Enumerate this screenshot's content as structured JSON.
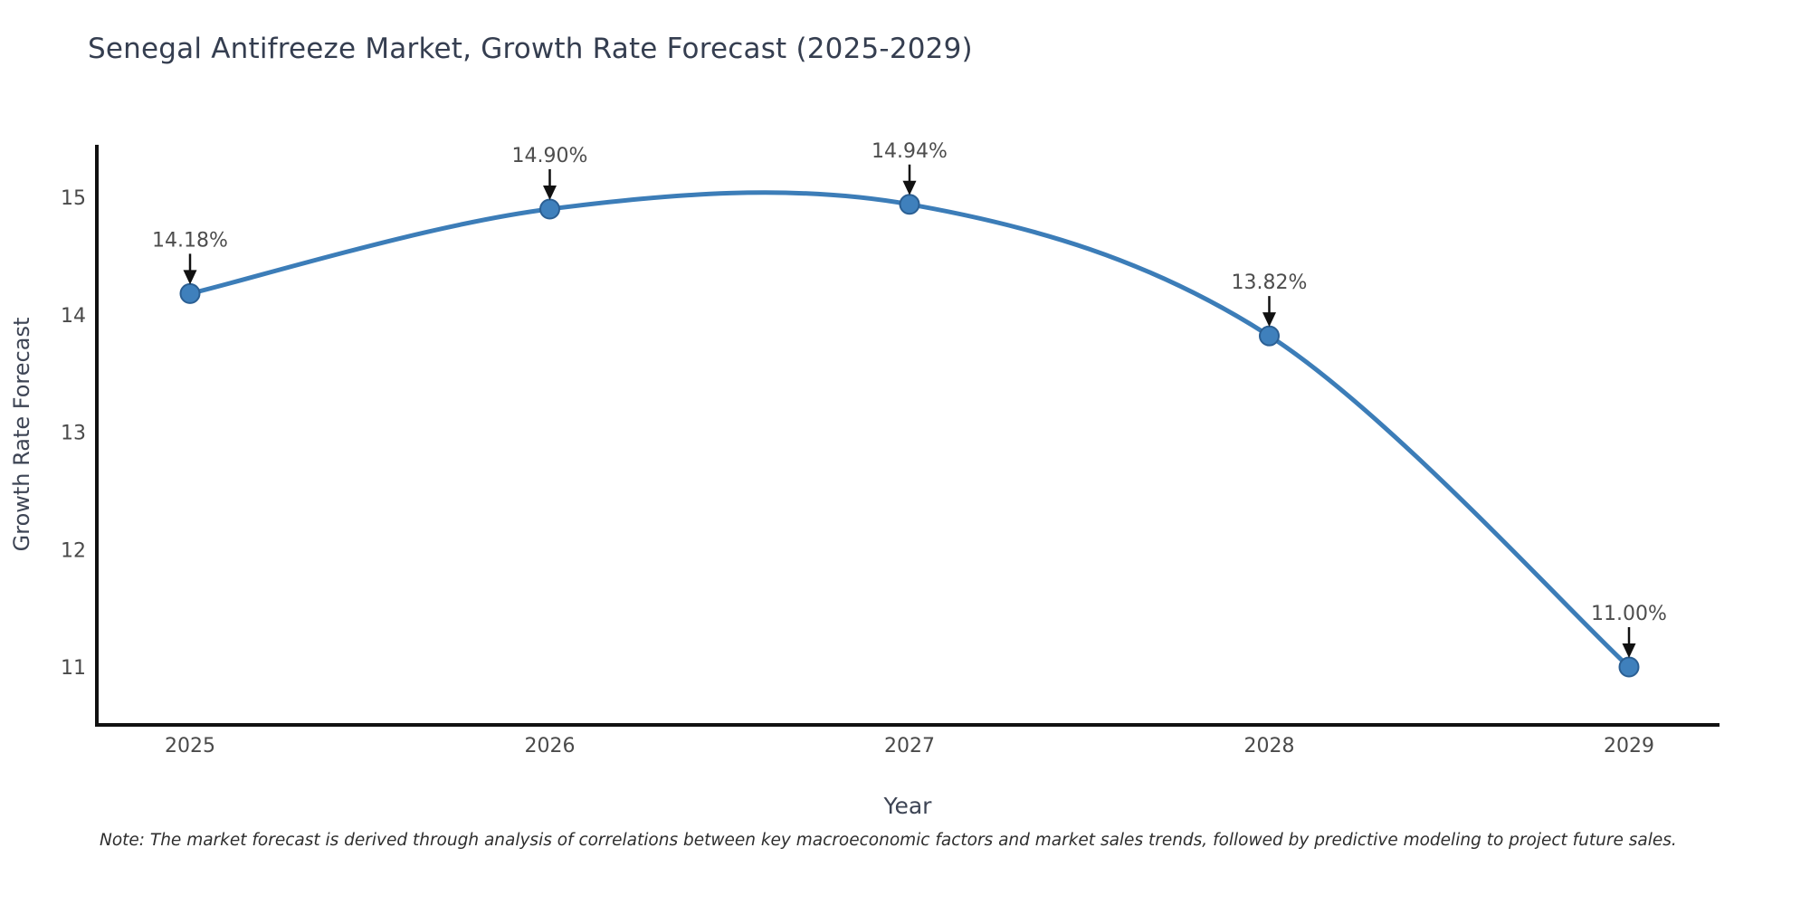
{
  "chart_data": {
    "type": "line",
    "title": "Senegal Antifreeze Market, Growth Rate Forecast (2025-2029)",
    "xlabel": "Year",
    "ylabel": "Growth Rate Forecast",
    "x": [
      "2025",
      "2026",
      "2027",
      "2028",
      "2029"
    ],
    "y": [
      14.18,
      14.9,
      14.94,
      13.82,
      11.0
    ],
    "point_labels": [
      "14.18%",
      "14.90%",
      "14.94%",
      "13.82%",
      "11.00%"
    ],
    "yticks": [
      15,
      14,
      13,
      12,
      11
    ],
    "ylim": [
      10.5,
      15.45
    ],
    "grid": false,
    "legend": "none",
    "smooth_curve": true,
    "colors": {
      "line": "#3c7db8",
      "marker_fill": "#3f80bc",
      "marker_edge": "#2b5f93",
      "axis_spine": "#111111",
      "tick_label": "#4a4a4a",
      "annotation_text": "#4d4d4d",
      "annotation_arrow": "#111111",
      "title": "#353e50"
    }
  },
  "note": {
    "text": "Note: The market forecast is derived through analysis of correlations between key macroeconomic factors and market sales trends, followed by predictive modeling to project future sales."
  }
}
